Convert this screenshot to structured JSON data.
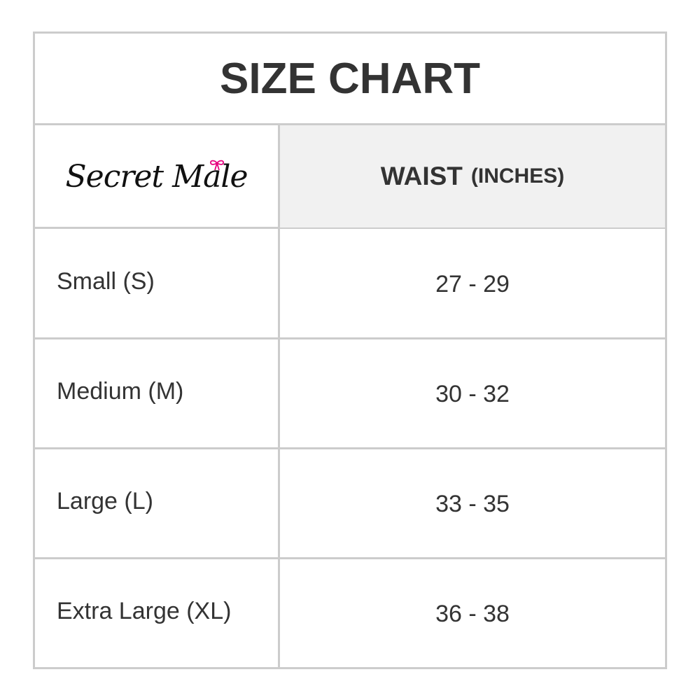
{
  "title": "SIZE CHART",
  "logo": {
    "text": "Secret Male",
    "accent_color": "#e6007e"
  },
  "header": {
    "column": "WAIST",
    "unit": "(INCHES)"
  },
  "rows": [
    {
      "size": "Small (S)",
      "waist": "27 - 29"
    },
    {
      "size": "Medium (M)",
      "waist": "30 - 32"
    },
    {
      "size": "Large (L)",
      "waist": "33 - 35"
    },
    {
      "size": "Extra Large (XL)",
      "waist": "36 - 38"
    }
  ],
  "colors": {
    "border": "#cccccc",
    "header_bg": "#f1f1f1",
    "text": "#333333"
  }
}
